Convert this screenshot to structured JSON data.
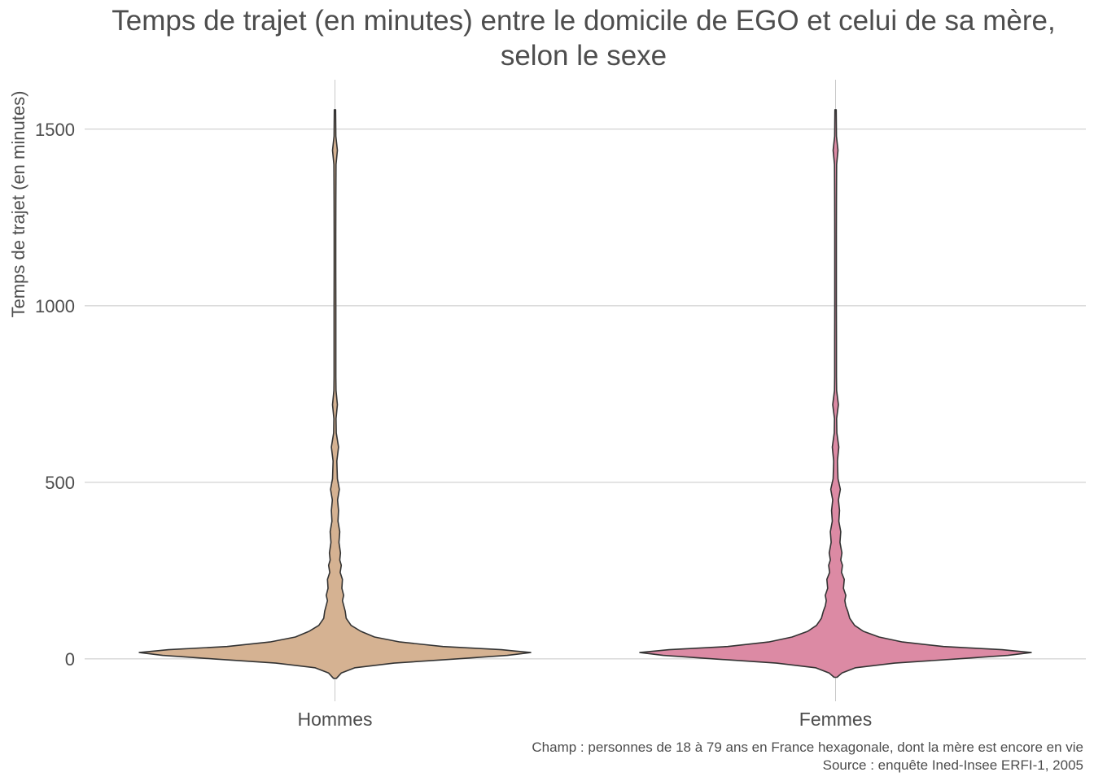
{
  "chart_data": {
    "type": "violin",
    "title_line1": "Temps de trajet (en minutes) entre le domicile de EGO et celui de sa mère,",
    "title_line2": "selon le sexe",
    "xlabel": "",
    "ylabel": "Temps de trajet (en minutes)",
    "ylim": [
      -120,
      1640
    ],
    "yticks": [
      0,
      500,
      1000,
      1500
    ],
    "ytick_labels": [
      "0",
      "500",
      "1000",
      "1500"
    ],
    "grid": true,
    "legend": "none",
    "categories": [
      "Hommes",
      "Femmes"
    ],
    "series": [
      {
        "category": "Hommes",
        "color": "#d5b292",
        "y_min": -55,
        "y_max": 1555,
        "density": [
          [
            -55,
            0.005
          ],
          [
            -40,
            0.03
          ],
          [
            -25,
            0.1
          ],
          [
            -12,
            0.3
          ],
          [
            0,
            0.62
          ],
          [
            10,
            0.88
          ],
          [
            18,
            1.0
          ],
          [
            26,
            0.85
          ],
          [
            35,
            0.55
          ],
          [
            48,
            0.33
          ],
          [
            62,
            0.2
          ],
          [
            78,
            0.13
          ],
          [
            95,
            0.08
          ],
          [
            115,
            0.055
          ],
          [
            135,
            0.05
          ],
          [
            150,
            0.043
          ],
          [
            165,
            0.036
          ],
          [
            180,
            0.042
          ],
          [
            200,
            0.033
          ],
          [
            225,
            0.036
          ],
          [
            245,
            0.024
          ],
          [
            265,
            0.03
          ],
          [
            280,
            0.022
          ],
          [
            300,
            0.026
          ],
          [
            330,
            0.018
          ],
          [
            360,
            0.022
          ],
          [
            390,
            0.013
          ],
          [
            420,
            0.016
          ],
          [
            450,
            0.011
          ],
          [
            480,
            0.02
          ],
          [
            510,
            0.01
          ],
          [
            560,
            0.007
          ],
          [
            600,
            0.016
          ],
          [
            640,
            0.004
          ],
          [
            680,
            0.003
          ],
          [
            720,
            0.01
          ],
          [
            760,
            0.003
          ],
          [
            800,
            0.002
          ],
          [
            900,
            0.002
          ],
          [
            1000,
            0.002
          ],
          [
            1100,
            0.0015
          ],
          [
            1200,
            0.0015
          ],
          [
            1300,
            0.002
          ],
          [
            1400,
            0.003
          ],
          [
            1440,
            0.01
          ],
          [
            1480,
            0.002
          ],
          [
            1555,
            0.001
          ]
        ]
      },
      {
        "category": "Femmes",
        "color": "#dc8aa4",
        "y_min": -52,
        "y_max": 1555,
        "density": [
          [
            -52,
            0.005
          ],
          [
            -40,
            0.03
          ],
          [
            -25,
            0.1
          ],
          [
            -12,
            0.3
          ],
          [
            0,
            0.62
          ],
          [
            10,
            0.88
          ],
          [
            18,
            1.0
          ],
          [
            26,
            0.85
          ],
          [
            35,
            0.55
          ],
          [
            48,
            0.34
          ],
          [
            62,
            0.22
          ],
          [
            78,
            0.14
          ],
          [
            95,
            0.095
          ],
          [
            115,
            0.07
          ],
          [
            135,
            0.06
          ],
          [
            150,
            0.05
          ],
          [
            165,
            0.045
          ],
          [
            180,
            0.05
          ],
          [
            200,
            0.038
          ],
          [
            225,
            0.042
          ],
          [
            245,
            0.028
          ],
          [
            265,
            0.033
          ],
          [
            280,
            0.024
          ],
          [
            300,
            0.03
          ],
          [
            330,
            0.02
          ],
          [
            360,
            0.024
          ],
          [
            390,
            0.014
          ],
          [
            420,
            0.018
          ],
          [
            450,
            0.012
          ],
          [
            480,
            0.022
          ],
          [
            510,
            0.01
          ],
          [
            560,
            0.007
          ],
          [
            600,
            0.014
          ],
          [
            640,
            0.004
          ],
          [
            680,
            0.003
          ],
          [
            720,
            0.012
          ],
          [
            760,
            0.003
          ],
          [
            800,
            0.002
          ],
          [
            900,
            0.002
          ],
          [
            1000,
            0.0015
          ],
          [
            1100,
            0.0015
          ],
          [
            1200,
            0.0015
          ],
          [
            1300,
            0.002
          ],
          [
            1400,
            0.003
          ],
          [
            1440,
            0.01
          ],
          [
            1480,
            0.002
          ],
          [
            1555,
            0.001
          ]
        ]
      }
    ],
    "caption_line1": "Champ : personnes de 18 à 79 ans en France hexagonale, dont la mère est encore en vie",
    "caption_line2": "Source : enquête Ined-Insee ERFI-1, 2005"
  }
}
